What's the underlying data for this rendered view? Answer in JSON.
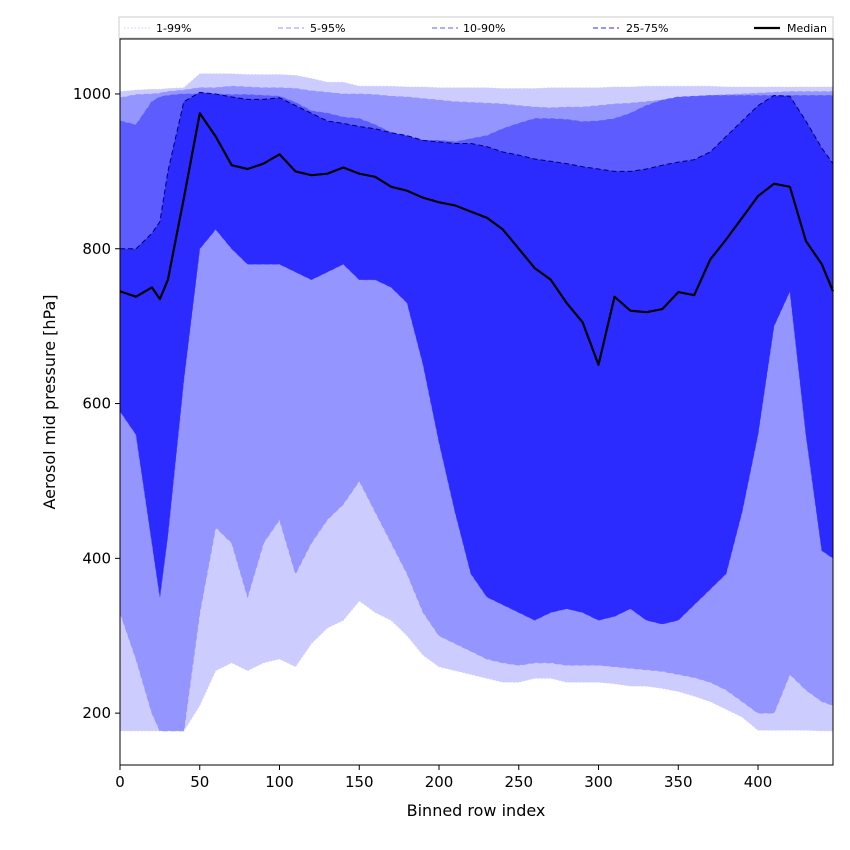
{
  "chart_data": {
    "type": "area",
    "xlabel": "Binned row index",
    "ylabel": "Aerosol mid pressure [hPa]",
    "xlim": [
      0,
      447
    ],
    "ylim": [
      133,
      1071
    ],
    "x_ticks": [
      "0",
      "50",
      "100",
      "150",
      "200",
      "250",
      "300",
      "350",
      "400"
    ],
    "y_ticks": [
      "200",
      "400",
      "600",
      "800",
      "1000"
    ],
    "grid": false,
    "legend_position": "top",
    "x": [
      0,
      10,
      20,
      25,
      30,
      40,
      50,
      60,
      70,
      80,
      90,
      100,
      110,
      120,
      130,
      140,
      150,
      160,
      170,
      180,
      190,
      200,
      210,
      220,
      230,
      240,
      250,
      260,
      270,
      280,
      290,
      300,
      310,
      320,
      330,
      340,
      350,
      360,
      370,
      380,
      390,
      400,
      410,
      420,
      430,
      440,
      447
    ],
    "series": [
      {
        "name": "1-99%",
        "color": "#ccccff",
        "line_style": "dotted",
        "lower": [
          177,
          177,
          177,
          177,
          177,
          177,
          210,
          255,
          265,
          255,
          265,
          270,
          260,
          290,
          310,
          320,
          345,
          330,
          320,
          300,
          275,
          260,
          255,
          250,
          245,
          240,
          240,
          245,
          245,
          240,
          240,
          240,
          238,
          235,
          235,
          232,
          228,
          222,
          215,
          205,
          195,
          178,
          178,
          178,
          178,
          177,
          177
        ],
        "upper": [
          1003,
          1005,
          1006,
          1006,
          1007,
          1008,
          1026,
          1026,
          1026,
          1025,
          1025,
          1025,
          1024,
          1020,
          1015,
          1015,
          1010,
          1010,
          1010,
          1009,
          1009,
          1008,
          1008,
          1008,
          1008,
          1007,
          1007,
          1007,
          1008,
          1008,
          1008,
          1008,
          1009,
          1009,
          1010,
          1010,
          1010,
          1010,
          1010,
          1009,
          1009,
          1009,
          1009,
          1009,
          1009,
          1009,
          1009
        ]
      },
      {
        "name": "5-95%",
        "color": "#9595ff",
        "line_style": "dashed",
        "lower": [
          330,
          270,
          200,
          177,
          177,
          177,
          330,
          440,
          420,
          350,
          420,
          450,
          380,
          420,
          450,
          470,
          500,
          460,
          420,
          380,
          330,
          300,
          290,
          280,
          270,
          265,
          262,
          265,
          265,
          262,
          262,
          262,
          260,
          258,
          256,
          254,
          250,
          246,
          240,
          230,
          215,
          200,
          200,
          250,
          230,
          215,
          210
        ],
        "upper": [
          995,
          999,
          1000,
          1001,
          1003,
          1005,
          1008,
          1008,
          1010,
          1009,
          1008,
          1008,
          1007,
          1004,
          1002,
          1000,
          1000,
          999,
          997,
          996,
          994,
          992,
          990,
          989,
          988,
          987,
          985,
          983,
          982,
          983,
          983,
          985,
          987,
          988,
          990,
          992,
          994,
          996,
          998,
          999,
          1000,
          1001,
          1002,
          1003,
          1003,
          1003,
          1003
        ]
      },
      {
        "name": "10-90%",
        "color": "#5c5cff",
        "line_style": "dashed",
        "lower": [
          590,
          560,
          420,
          350,
          430,
          630,
          800,
          825,
          800,
          780,
          780,
          780,
          770,
          760,
          770,
          780,
          760,
          760,
          750,
          730,
          650,
          550,
          460,
          380,
          350,
          340,
          330,
          320,
          330,
          335,
          330,
          320,
          325,
          335,
          320,
          315,
          320,
          340,
          360,
          380,
          460,
          560,
          700,
          745,
          560,
          410,
          400
        ],
        "upper": [
          965,
          960,
          990,
          996,
          998,
          1000,
          1000,
          1000,
          999,
          999,
          998,
          997,
          989,
          978,
          975,
          970,
          968,
          960,
          950,
          945,
          940,
          940,
          938,
          942,
          946,
          955,
          962,
          968,
          968,
          967,
          964,
          965,
          968,
          975,
          985,
          992,
          996,
          997,
          998,
          998,
          998,
          998,
          998,
          998,
          998,
          998,
          998
        ]
      },
      {
        "name": "25-75%",
        "color": "#2b2bff",
        "line_style": "dashed",
        "upper": [
          800,
          800,
          820,
          835,
          900,
          990,
          1002,
          1000,
          996,
          993,
          993,
          995,
          985,
          975,
          965,
          962,
          958,
          955,
          950,
          946,
          940,
          938,
          936,
          936,
          932,
          925,
          921,
          916,
          913,
          910,
          906,
          903,
          900,
          900,
          903,
          908,
          912,
          915,
          925,
          945,
          965,
          985,
          998,
          997,
          965,
          930,
          910
        ]
      }
    ],
    "median": {
      "name": "Median",
      "color": "#000000",
      "values": [
        745,
        738,
        750,
        735,
        760,
        865,
        975,
        945,
        908,
        903,
        910,
        922,
        900,
        895,
        897,
        905,
        897,
        893,
        880,
        875,
        866,
        860,
        856,
        848,
        840,
        825,
        800,
        775,
        760,
        730,
        705,
        650,
        738,
        720,
        718,
        722,
        744,
        740,
        786,
        812,
        840,
        868,
        884,
        880,
        810,
        780,
        745
      ]
    }
  }
}
